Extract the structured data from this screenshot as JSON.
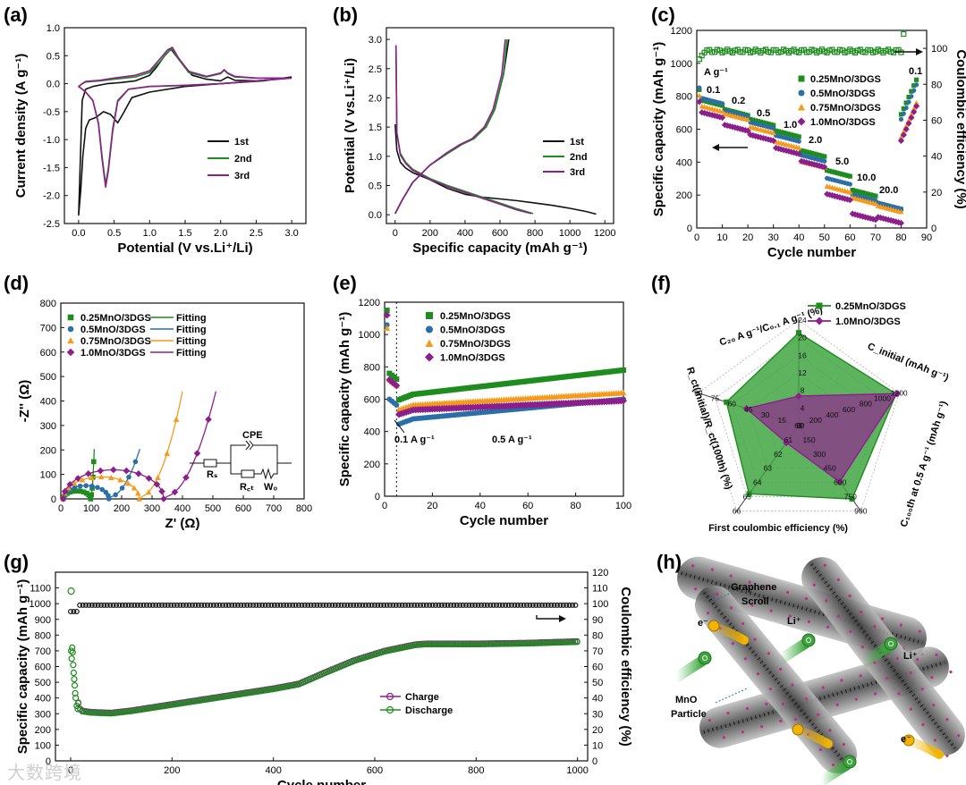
{
  "watermark": "大数跨境",
  "colors": {
    "black": "#111111",
    "green": "#1e8c1e",
    "blue": "#2b6fa8",
    "orange": "#f59a1c",
    "purple": "#8c1f8c",
    "fill_green": "#3aa33a",
    "fill_purple": "#8a3a8a"
  },
  "chart_data": [
    {
      "id": "a",
      "panel_label": "(a)",
      "type": "line",
      "xlabel": "Potential (V vs.Li⁺/Li)",
      "ylabel": "Current density (A g⁻¹)",
      "xlim": [
        -0.2,
        3.2
      ],
      "ylim": [
        -2.5,
        1.0
      ],
      "xticks": [
        "0.0",
        "0.5",
        "1.0",
        "1.5",
        "2.0",
        "2.5",
        "3.0"
      ],
      "yticks": [
        "-2.5",
        "-2.0",
        "-1.5",
        "-1.0",
        "-0.5",
        "0.0",
        "0.5",
        "1.0"
      ],
      "legend": [
        "1st",
        "2nd",
        "3rd"
      ],
      "series": [
        {
          "name": "1st",
          "color": "#111111",
          "x": [
            3.0,
            2.6,
            2.0,
            1.5,
            1.0,
            0.75,
            0.62,
            0.55,
            0.45,
            0.35,
            0.25,
            0.15,
            0.1,
            0.06,
            0.03,
            0.0,
            0.05,
            0.1,
            0.2,
            0.4,
            0.6,
            0.8,
            1.0,
            1.1,
            1.2,
            1.3,
            1.4,
            1.6,
            1.8,
            2.0,
            2.1,
            2.2,
            2.5,
            2.8,
            3.0
          ],
          "y": [
            0.12,
            0.05,
            0.0,
            -0.05,
            -0.15,
            -0.25,
            -0.55,
            -0.7,
            -0.55,
            -0.5,
            -0.6,
            -0.65,
            -0.8,
            -1.3,
            -1.9,
            -2.35,
            -0.3,
            -0.1,
            -0.05,
            0.0,
            0.02,
            0.05,
            0.15,
            0.3,
            0.48,
            0.62,
            0.45,
            0.15,
            0.08,
            0.05,
            0.12,
            0.06,
            0.05,
            0.08,
            0.12
          ]
        },
        {
          "name": "2nd",
          "color": "#1e8c1e",
          "x": [
            3.0,
            2.5,
            2.0,
            1.5,
            1.0,
            0.7,
            0.55,
            0.48,
            0.42,
            0.38,
            0.33,
            0.28,
            0.2,
            0.1,
            0.05,
            0.0,
            0.05,
            0.1,
            0.3,
            0.5,
            0.8,
            1.0,
            1.15,
            1.25,
            1.32,
            1.4,
            1.55,
            1.8,
            2.0,
            2.05,
            2.1,
            2.2,
            2.5,
            2.8,
            3.0
          ],
          "y": [
            0.1,
            0.05,
            0.0,
            -0.03,
            -0.05,
            -0.1,
            -0.3,
            -0.8,
            -1.5,
            -1.8,
            -1.3,
            -0.7,
            -0.3,
            -0.15,
            -0.1,
            -0.05,
            0.0,
            0.03,
            0.05,
            0.08,
            0.12,
            0.2,
            0.4,
            0.56,
            0.62,
            0.45,
            0.2,
            0.12,
            0.18,
            0.24,
            0.18,
            0.12,
            0.1,
            0.1,
            0.1
          ]
        },
        {
          "name": "3rd",
          "color": "#8c1f8c",
          "x": [
            3.0,
            2.5,
            2.0,
            1.5,
            1.0,
            0.7,
            0.55,
            0.48,
            0.42,
            0.38,
            0.33,
            0.28,
            0.2,
            0.1,
            0.05,
            0.0,
            0.05,
            0.1,
            0.3,
            0.5,
            0.8,
            1.0,
            1.15,
            1.25,
            1.32,
            1.4,
            1.55,
            1.8,
            2.0,
            2.05,
            2.1,
            2.2,
            2.5,
            2.8,
            3.0
          ],
          "y": [
            0.1,
            0.05,
            0.0,
            -0.03,
            -0.05,
            -0.1,
            -0.32,
            -0.85,
            -1.55,
            -1.85,
            -1.35,
            -0.72,
            -0.3,
            -0.15,
            -0.1,
            -0.05,
            0.0,
            0.04,
            0.06,
            0.1,
            0.15,
            0.23,
            0.45,
            0.6,
            0.65,
            0.47,
            0.22,
            0.13,
            0.19,
            0.25,
            0.19,
            0.13,
            0.1,
            0.1,
            0.1
          ]
        }
      ]
    },
    {
      "id": "b",
      "panel_label": "(b)",
      "type": "line",
      "xlabel": "Specific capacity (mAh g⁻¹)",
      "ylabel": "Potential (V vs.Li⁺/Li)",
      "xlim": [
        -50,
        1250
      ],
      "ylim": [
        -0.15,
        3.2
      ],
      "xticks": [
        "0",
        "200",
        "400",
        "600",
        "800",
        "1000",
        "1200"
      ],
      "yticks": [
        "0.0",
        "0.5",
        "1.0",
        "1.5",
        "2.0",
        "2.5",
        "3.0"
      ],
      "legend": [
        "1st",
        "2nd",
        "3rd"
      ],
      "series": [
        {
          "name": "1st",
          "color": "#111111",
          "x": [
            0,
            10,
            30,
            60,
            100,
            150,
            200,
            300,
            400,
            500,
            600,
            700,
            800,
            900,
            1000,
            1100,
            1150
          ],
          "y": [
            1.55,
            1.1,
            0.9,
            0.8,
            0.72,
            0.66,
            0.6,
            0.45,
            0.35,
            0.3,
            0.27,
            0.24,
            0.2,
            0.16,
            0.11,
            0.05,
            0.01
          ]
        },
        {
          "name": "1st-charge",
          "color": "#111111",
          "x": [
            0,
            40,
            100,
            200,
            300,
            380,
            450,
            520,
            570,
            620,
            650
          ],
          "y": [
            0.02,
            0.25,
            0.55,
            0.85,
            1.05,
            1.2,
            1.3,
            1.5,
            1.8,
            2.4,
            3.0
          ]
        },
        {
          "name": "2nd",
          "color": "#1e8c1e",
          "x": [
            5,
            10,
            30,
            60,
            100,
            150,
            200,
            300,
            400,
            500,
            600,
            700,
            790
          ],
          "y": [
            2.9,
            1.4,
            1.05,
            0.9,
            0.78,
            0.7,
            0.62,
            0.5,
            0.4,
            0.3,
            0.2,
            0.1,
            0.02
          ]
        },
        {
          "name": "2nd-charge",
          "color": "#1e8c1e",
          "x": [
            0,
            40,
            100,
            200,
            300,
            380,
            450,
            520,
            570,
            620,
            640
          ],
          "y": [
            0.02,
            0.25,
            0.55,
            0.85,
            1.05,
            1.2,
            1.3,
            1.5,
            1.8,
            2.4,
            3.0
          ]
        },
        {
          "name": "3rd",
          "color": "#8c1f8c",
          "x": [
            5,
            10,
            30,
            60,
            100,
            150,
            200,
            300,
            400,
            500,
            600,
            700,
            780
          ],
          "y": [
            2.9,
            1.4,
            1.02,
            0.88,
            0.76,
            0.68,
            0.6,
            0.48,
            0.38,
            0.28,
            0.18,
            0.08,
            0.02
          ]
        },
        {
          "name": "3rd-charge",
          "color": "#8c1f8c",
          "x": [
            0,
            40,
            100,
            200,
            290,
            370,
            440,
            510,
            560,
            610,
            630
          ],
          "y": [
            0.02,
            0.25,
            0.55,
            0.85,
            1.05,
            1.2,
            1.3,
            1.5,
            1.8,
            2.4,
            3.0
          ]
        }
      ]
    },
    {
      "id": "c",
      "panel_label": "(c)",
      "type": "scatter",
      "xlabel": "Cycle number",
      "ylabel": "Specific capacity (mAh g⁻¹)",
      "y2label": "Coulombic efficiency (%)",
      "xlim": [
        0,
        90
      ],
      "ylim": [
        0,
        1200
      ],
      "y2lim": [
        0,
        110
      ],
      "xticks": [
        "0",
        "10",
        "20",
        "30",
        "40",
        "50",
        "60",
        "70",
        "80",
        "90"
      ],
      "yticks": [
        "0",
        "200",
        "400",
        "600",
        "800",
        "1000",
        "1200"
      ],
      "y2ticks": [
        "0",
        "20",
        "40",
        "60",
        "80",
        "100"
      ],
      "legend": [
        "0.25MnO/3DGS",
        "0.5MnO/3DGS",
        "0.75MnO/3DGS",
        "1.0MnO/3DGS"
      ],
      "rate_labels": [
        "A g⁻¹",
        "0.1",
        "0.2",
        "0.5",
        "1.0",
        "2.0",
        "5.0",
        "10.0",
        "20.0",
        "0.1"
      ],
      "steps": [
        {
          "name": "0.25MnO/3DGS",
          "color": "#1e8c1e",
          "marker": "square",
          "levels": [
            780,
            720,
            660,
            590,
            470,
            350,
            230,
            150,
            900
          ]
        },
        {
          "name": "0.5MnO/3DGS",
          "color": "#2b6fa8",
          "marker": "circle",
          "levels": [
            790,
            710,
            640,
            560,
            440,
            300,
            200,
            150,
            870
          ]
        },
        {
          "name": "0.75MnO/3DGS",
          "color": "#f59a1c",
          "marker": "triangle",
          "levels": [
            740,
            690,
            610,
            520,
            400,
            250,
            180,
            130,
            760
          ]
        },
        {
          "name": "1.0MnO/3DGS",
          "color": "#8c1f8c",
          "marker": "diamond",
          "levels": [
            700,
            620,
            560,
            480,
            400,
            200,
            80,
            60,
            740
          ]
        }
      ],
      "ce": {
        "start": 92,
        "plateau": 98.5
      }
    },
    {
      "id": "d",
      "panel_label": "(d)",
      "type": "scatter",
      "xlabel": "Z' (Ω)",
      "ylabel": "-Z'' (Ω)",
      "xlim": [
        0,
        800
      ],
      "ylim": [
        0,
        800
      ],
      "xticks": [
        "0",
        "100",
        "200",
        "300",
        "400",
        "500",
        "600",
        "700",
        "800"
      ],
      "yticks": [
        "0",
        "100",
        "200",
        "300",
        "400",
        "500",
        "600",
        "700",
        "800"
      ],
      "legend": [
        "0.25MnO/3DGS",
        "0.5MnO/3DGS",
        "0.75MnO/3DGS",
        "1.0MnO/3DGS"
      ],
      "fit_label": "Fitting",
      "circuit": {
        "cpe": "CPE",
        "rs": "Rₛ",
        "rct": "R꜀ₜ",
        "wo": "W₀"
      },
      "series": [
        {
          "name": "0.25MnO/3DGS",
          "color": "#1e8c1e",
          "marker": "square",
          "rct": 90,
          "tail_x": 110
        },
        {
          "name": "0.5MnO/3DGS",
          "color": "#2b6fa8",
          "marker": "circle",
          "rct": 150,
          "tail_x": 260
        },
        {
          "name": "0.75MnO/3DGS",
          "color": "#f59a1c",
          "marker": "triangle",
          "rct": 250,
          "tail_x": 400
        },
        {
          "name": "1.0MnO/3DGS",
          "color": "#8c1f8c",
          "marker": "diamond",
          "rct": 330,
          "tail_x": 510
        }
      ]
    },
    {
      "id": "e",
      "panel_label": "(e)",
      "type": "scatter",
      "xlabel": "Cycle number",
      "ylabel": "Specific capacity (mAh g⁻¹)",
      "xlim": [
        0,
        100
      ],
      "ylim": [
        0,
        1200
      ],
      "xticks": [
        "0",
        "20",
        "40",
        "60",
        "80",
        "100"
      ],
      "yticks": [
        "0",
        "200",
        "400",
        "600",
        "800",
        "1000",
        "1200"
      ],
      "legend": [
        "0.25MnO/3DGS",
        "0.5MnO/3DGS",
        "0.75MnO/3DGS",
        "1.0MnO/3DGS"
      ],
      "annotations": [
        "0.1 A g⁻¹",
        "0.5 A g⁻¹"
      ],
      "series": [
        {
          "name": "0.25MnO/3DGS",
          "color": "#1e8c1e",
          "marker": "square",
          "first": 1150,
          "initial": 760,
          "start": 620,
          "end": 780
        },
        {
          "name": "0.5MnO/3DGS",
          "color": "#2b6fa8",
          "marker": "circle",
          "first": 1060,
          "initial": 600,
          "start": 470,
          "end": 600
        },
        {
          "name": "0.75MnO/3DGS",
          "color": "#f59a1c",
          "marker": "triangle",
          "first": 1040,
          "initial": 720,
          "start": 560,
          "end": 640
        },
        {
          "name": "1.0MnO/3DGS",
          "color": "#8c1f8c",
          "marker": "diamond",
          "first": 1120,
          "initial": 720,
          "start": 530,
          "end": 590
        }
      ]
    },
    {
      "id": "f",
      "panel_label": "(f)",
      "type": "radar",
      "legend": [
        "0.25MnO/3DGS",
        "1.0MnO/3DGS"
      ],
      "axes": [
        {
          "label": "C₂₀ A g⁻¹/C₀.₁ A g⁻¹ (%)",
          "ticks": [
            "0",
            "4",
            "8",
            "12",
            "16",
            "20",
            "24"
          ]
        },
        {
          "label": "C_initial (mAh g⁻¹)",
          "ticks": [
            "0",
            "200",
            "400",
            "600",
            "800",
            "1000",
            "1200"
          ]
        },
        {
          "label": "C₁₀₀th at 0.5 A g⁻¹ (mAh g⁻¹)",
          "ticks": [
            "0",
            "150",
            "300",
            "450",
            "600",
            "750",
            "900"
          ]
        },
        {
          "label": "First coulombic efficiency (%)",
          "ticks": [
            "60",
            "61",
            "62",
            "63",
            "64",
            "65",
            "66"
          ]
        },
        {
          "label": "R_ct(initial)/R_ct(100th) (%)",
          "ticks": [
            "0",
            "15",
            "30",
            "45",
            "60",
            "75",
            "90"
          ]
        }
      ],
      "series": [
        {
          "name": "0.25MnO/3DGS",
          "color": "#1e8c1e",
          "fill": "#3aa33a",
          "values": [
            0.88,
            0.97,
            0.86,
            0.8,
            0.72
          ]
        },
        {
          "name": "1.0MnO/3DGS",
          "color": "#8c1f8c",
          "fill": "#8a3a8a",
          "values": [
            0.28,
            0.98,
            0.66,
            0.2,
            0.52
          ]
        }
      ]
    },
    {
      "id": "g",
      "panel_label": "(g)",
      "type": "scatter",
      "xlabel": "Cycle number",
      "ylabel": "Specific capacity (mAh g⁻¹)",
      "y2label": "Coulombic efficiency (%)",
      "xlim": [
        -30,
        1020
      ],
      "ylim": [
        0,
        1200
      ],
      "y2lim": [
        0,
        120
      ],
      "xticks": [
        "0",
        "200",
        "400",
        "600",
        "800",
        "1000"
      ],
      "yticks": [
        "0",
        "100",
        "200",
        "300",
        "400",
        "500",
        "600",
        "700",
        "800",
        "900",
        "1000",
        "1100"
      ],
      "y2ticks": [
        "0",
        "10",
        "20",
        "30",
        "40",
        "50",
        "60",
        "70",
        "80",
        "90",
        "100",
        "110",
        "120"
      ],
      "legend": [
        "Charge",
        "Discharge"
      ],
      "capacity_curve": {
        "x": [
          0,
          10,
          20,
          40,
          80,
          120,
          200,
          300,
          400,
          450,
          500,
          560,
          620,
          680,
          700,
          800,
          900,
          1000
        ],
        "y": [
          760,
          420,
          320,
          310,
          305,
          320,
          360,
          410,
          460,
          490,
          560,
          640,
          700,
          740,
          745,
          745,
          750,
          760
        ]
      },
      "ce_value": 99
    },
    {
      "id": "h",
      "panel_label": "(h)",
      "type": "illustration",
      "labels": [
        "Graphene Scroll",
        "Li⁺",
        "Li⁺",
        "MnO Particle",
        "e⁻",
        "e⁻"
      ]
    }
  ]
}
